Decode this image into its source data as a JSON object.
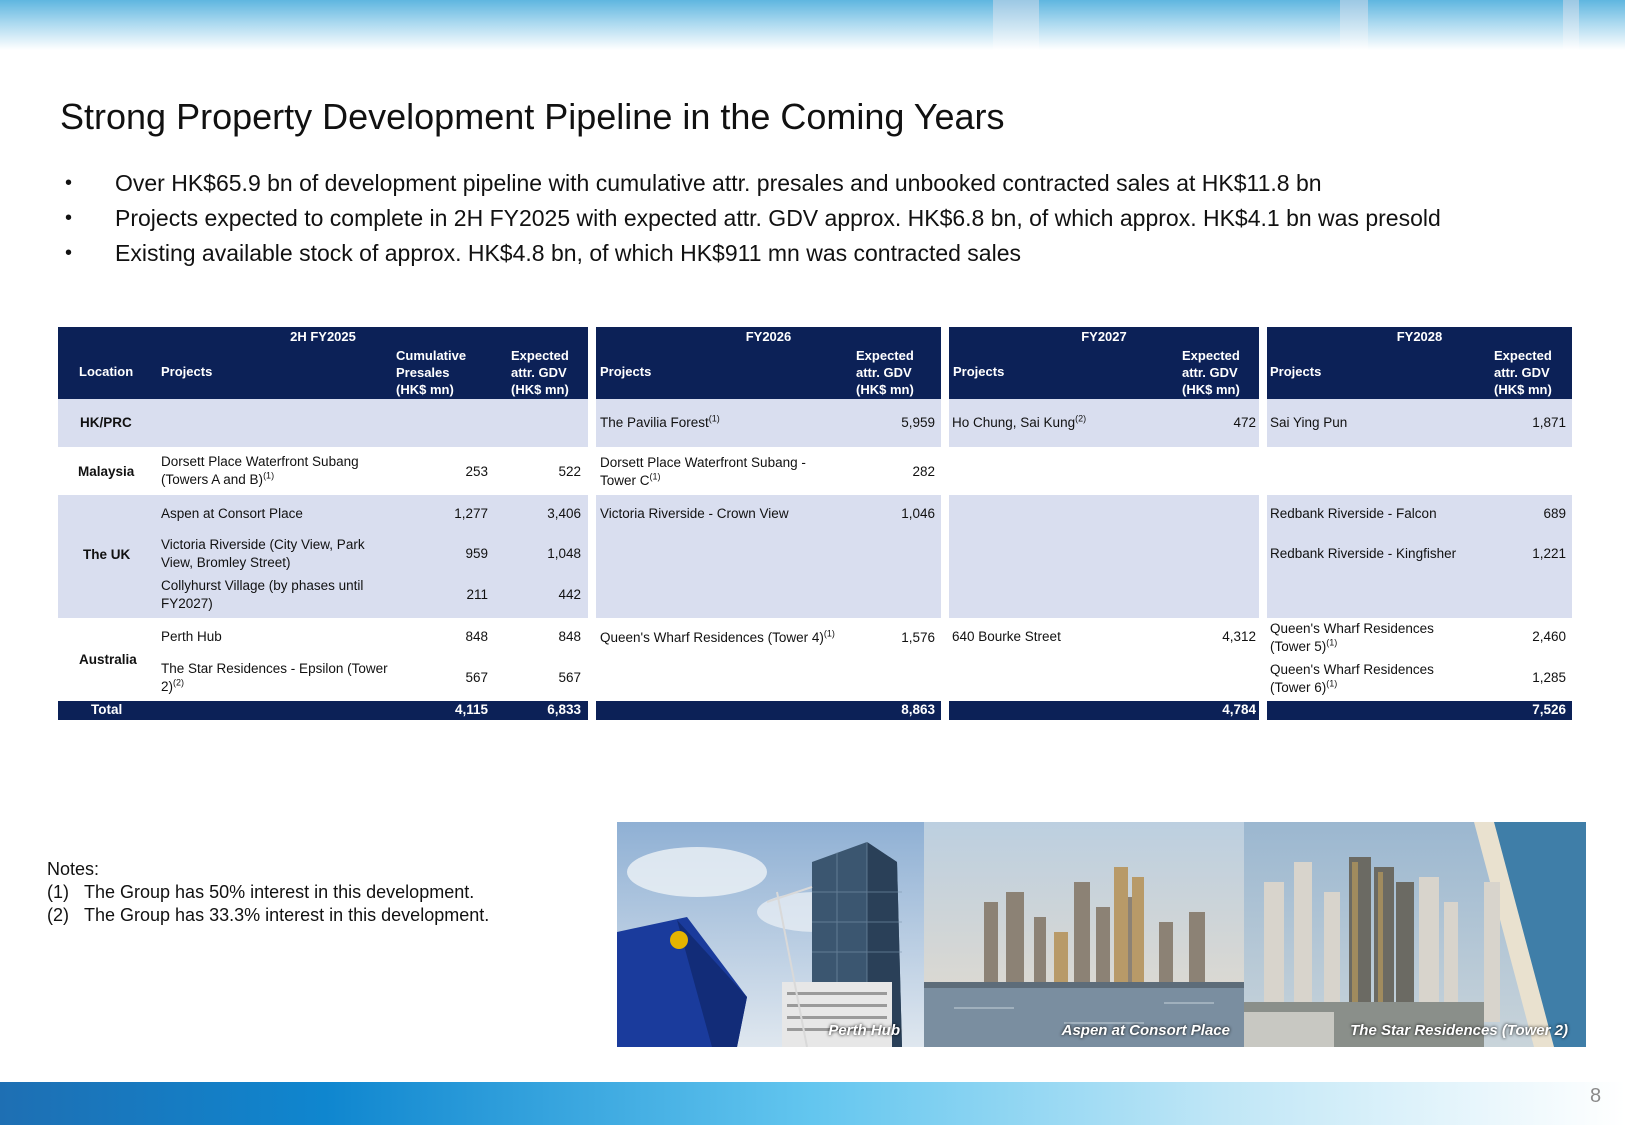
{
  "page_number": "8",
  "title": "Strong Property Development Pipeline in the Coming Years",
  "bullets": [
    "Over HK$65.9 bn of development pipeline with cumulative attr. presales and unbooked contracted sales at HK$11.8 bn",
    "Projects expected to complete in 2H FY2025 with expected attr. GDV approx. HK$6.8 bn, of which approx. HK$4.1 bn was presold",
    "Existing available stock of approx. HK$4.8 bn, of which HK$911 mn was contracted sales"
  ],
  "bullet_symbol": "•",
  "table": {
    "periods": {
      "h2_fy2025": "2H FY2025",
      "fy2026": "FY2026",
      "fy2027": "FY2027",
      "fy2028": "FY2028"
    },
    "headers": {
      "location": "Location",
      "projects": "Projects",
      "cum_presales": [
        "Cumulative",
        "Presales",
        "(HK$ mn)"
      ],
      "exp_gdv": [
        "Expected",
        "attr. GDV",
        "(HK$ mn)"
      ]
    },
    "locations": {
      "hk": "HK/PRC",
      "my": "Malaysia",
      "uk": "The UK",
      "au": "Australia"
    },
    "h2_fy2025": {
      "my1": {
        "name_l1": "Dorsett Place Waterfront Subang",
        "name_l2": "(Towers A and B)",
        "presales": "253",
        "gdv": "522"
      },
      "uk1": {
        "name": "Aspen at Consort Place",
        "presales": "1,277",
        "gdv": "3,406"
      },
      "uk2": {
        "name_l1": "Victoria Riverside (City View, Park",
        "name_l2": "View, Bromley Street)",
        "presales": "959",
        "gdv": "1,048"
      },
      "uk3": {
        "name_l1": "Collyhurst Village (by phases until",
        "name_l2": "FY2027)",
        "presales": "211",
        "gdv": "442"
      },
      "au1": {
        "name": "Perth Hub",
        "presales": "848",
        "gdv": "848"
      },
      "au2": {
        "name_l1": "The Star Residences - Epsilon (Tower",
        "name_l2": "2)",
        "presales": "567",
        "gdv": "567"
      },
      "total_presales": "4,115",
      "total_gdv": "6,833"
    },
    "fy2026": {
      "hk": {
        "name": "The Pavilia Forest",
        "gdv": "5,959"
      },
      "my": {
        "name_l1": "Dorsett Place Waterfront Subang -",
        "name_l2": "Tower C",
        "gdv": "282"
      },
      "uk": {
        "name": "Victoria Riverside - Crown View",
        "gdv": "1,046"
      },
      "au": {
        "name": "Queen's Wharf Residences (Tower 4)",
        "gdv": "1,576"
      },
      "total": "8,863"
    },
    "fy2027": {
      "hk": {
        "name": "Ho Chung, Sai Kung",
        "gdv": "472"
      },
      "au": {
        "name": "640 Bourke Street",
        "gdv": "4,312"
      },
      "total": "4,784"
    },
    "fy2028": {
      "hk": {
        "name": "Sai Ying Pun",
        "gdv": "1,871"
      },
      "uk1": {
        "name": "Redbank Riverside - Falcon",
        "gdv": "689"
      },
      "uk2": {
        "name": "Redbank Riverside - Kingfisher",
        "gdv": "1,221"
      },
      "au1": {
        "name_l1": "Queen's Wharf Residences",
        "name_l2": "(Tower 5)",
        "gdv": "2,460"
      },
      "au2": {
        "name_l1": "Queen's Wharf Residences",
        "name_l2": "(Tower 6)",
        "gdv": "1,285"
      },
      "total": "7,526"
    },
    "total_label": "Total",
    "fn1": "(1)",
    "fn2": "(2)"
  },
  "notes": {
    "heading": "Notes:",
    "items": [
      {
        "marker": "(1)",
        "text": "The Group has 50% interest in this development."
      },
      {
        "marker": "(2)",
        "text": "The Group has 33.3% interest in this development."
      }
    ]
  },
  "photos": [
    {
      "caption": "Perth Hub"
    },
    {
      "caption": "Aspen at Consort Place"
    },
    {
      "caption": "The Star Residences (Tower 2)"
    }
  ],
  "colors": {
    "header_navy": "#0c2157",
    "row_shade": "#d9deef"
  }
}
